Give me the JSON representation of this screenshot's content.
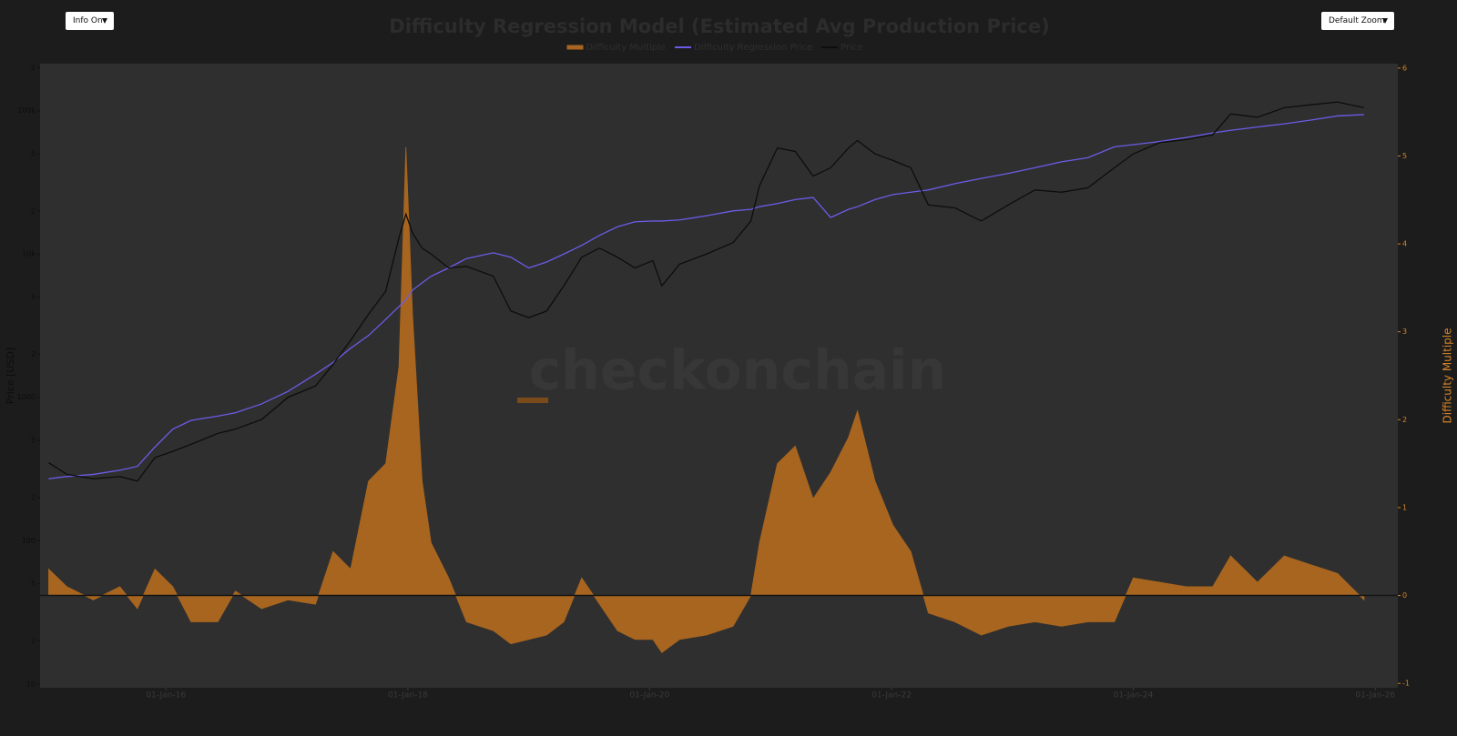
{
  "controls": {
    "info": "Info On",
    "zoom": "Default Zoom"
  },
  "chart_data": {
    "type": "line",
    "title": "Difficulty Regression Model (Estimated Avg Production Price)",
    "watermark": "checkonchain",
    "y_label": "Price [USD]",
    "y2_label": "Difficulty Multiple",
    "legend": "top",
    "grid": false,
    "ylog": true,
    "x": [
      "2015-01-12",
      "2015-03-08",
      "2015-05-27",
      "2015-08-15",
      "2015-10-07",
      "2015-11-29",
      "2016-01-22",
      "2016-03-17",
      "2016-06-06",
      "2016-07-29",
      "2016-10-16",
      "2017-01-04",
      "2017-03-28",
      "2017-05-20",
      "2017-07-12",
      "2017-09-04",
      "2017-10-26",
      "2017-12-05",
      "2017-12-26",
      "2018-01-15",
      "2018-02-13",
      "2018-03-12",
      "2018-05-04",
      "2018-06-27",
      "2018-09-16",
      "2018-11-08",
      "2019-01-01",
      "2019-02-24",
      "2019-04-17",
      "2019-06-10",
      "2019-08-03",
      "2019-09-26",
      "2019-11-18",
      "2020-01-11",
      "2020-02-07",
      "2020-04-01",
      "2020-06-21",
      "2020-09-09",
      "2020-11-02",
      "2020-11-28",
      "2021-01-21",
      "2021-03-16",
      "2021-05-09",
      "2021-07-01",
      "2021-08-24",
      "2021-09-20",
      "2021-11-12",
      "2022-01-05",
      "2022-02-28",
      "2022-04-22",
      "2022-07-11",
      "2022-09-29",
      "2022-12-19",
      "2023-03-10",
      "2023-05-29",
      "2023-08-17",
      "2023-11-05",
      "2024-01-01",
      "2024-03-21",
      "2024-06-09",
      "2024-08-28",
      "2024-10-21",
      "2025-01-10",
      "2025-04-01",
      "2025-06-20",
      "2025-09-09",
      "2025-11-28"
    ],
    "series": [
      {
        "name": "Difficulty Multiple",
        "type": "area",
        "axis": "y2",
        "color": "#a8651f",
        "values": [
          0.3,
          0.1,
          -0.05,
          0.1,
          -0.15,
          0.3,
          0.1,
          -0.3,
          -0.3,
          0.05,
          -0.15,
          -0.05,
          -0.1,
          0.5,
          0.3,
          1.3,
          1.5,
          2.6,
          5.1,
          3.2,
          1.3,
          0.6,
          0.2,
          -0.3,
          -0.4,
          -0.55,
          -0.5,
          -0.45,
          -0.3,
          0.2,
          -0.1,
          -0.4,
          -0.5,
          -0.5,
          -0.65,
          -0.5,
          -0.45,
          -0.35,
          0.0,
          0.6,
          1.5,
          1.7,
          1.1,
          1.4,
          1.8,
          2.1,
          1.3,
          0.8,
          0.5,
          -0.2,
          -0.3,
          -0.45,
          -0.35,
          -0.3,
          -0.35,
          -0.3,
          -0.3,
          0.2,
          0.15,
          0.1,
          0.1,
          0.45,
          0.15,
          0.45,
          0.35,
          0.25,
          -0.05
        ]
      },
      {
        "name": "Difficulty Regression Price",
        "color": "#6b5ce7",
        "values": [
          270,
          280,
          290,
          310,
          330,
          450,
          600,
          690,
          740,
          780,
          900,
          1100,
          1450,
          1750,
          2200,
          2700,
          3500,
          4300,
          4800,
          5600,
          6300,
          7000,
          8000,
          9300,
          10200,
          9500,
          8000,
          8800,
          10000,
          11500,
          13500,
          15500,
          16800,
          17000,
          17000,
          17300,
          18500,
          20000,
          20500,
          21400,
          22500,
          24000,
          24800,
          18000,
          20500,
          21400,
          24000,
          26000,
          27000,
          28000,
          31000,
          33700,
          36500,
          40000,
          44000,
          47000,
          56000,
          58000,
          61000,
          65000,
          70000,
          73000,
          77000,
          81000,
          86000,
          92000,
          94000
        ]
      },
      {
        "name": "Price",
        "color": "#0d0d0d",
        "values": [
          350,
          290,
          270,
          280,
          260,
          380,
          420,
          470,
          560,
          600,
          700,
          1000,
          1200,
          1700,
          2500,
          3800,
          5500,
          13000,
          19000,
          14000,
          11000,
          10000,
          8000,
          8200,
          7000,
          4000,
          3600,
          4000,
          6000,
          9500,
          11000,
          9500,
          8000,
          9000,
          6000,
          8500,
          10000,
          12000,
          17000,
          30000,
          55000,
          52000,
          35000,
          40000,
          55000,
          62000,
          50000,
          45000,
          40000,
          22000,
          21000,
          17000,
          22000,
          28000,
          27000,
          29000,
          40000,
          50000,
          60000,
          63000,
          68000,
          95000,
          90000,
          105000,
          110000,
          115000,
          105000
        ]
      }
    ],
    "xlim": [
      "2014-12-17",
      "2026-03-10"
    ],
    "xticks": [
      {
        "value": "2016-01-01",
        "label": "01-Jan-16"
      },
      {
        "value": "2018-01-01",
        "label": "01-Jan-18"
      },
      {
        "value": "2020-01-01",
        "label": "01-Jan-20"
      },
      {
        "value": "2022-01-01",
        "label": "01-Jan-22"
      },
      {
        "value": "2024-01-01",
        "label": "01-Jan-24"
      },
      {
        "value": "2026-01-01",
        "label": "01-Jan-26"
      }
    ],
    "ylim": [
      9.4,
      213000
    ],
    "yticks": [
      10,
      {
        "value": 20,
        "label": "2"
      },
      {
        "value": 50,
        "label": "5"
      },
      100,
      {
        "value": 200,
        "label": "2"
      },
      {
        "value": 500,
        "label": "5"
      },
      1000,
      {
        "value": 2000,
        "label": "2"
      },
      {
        "value": 5000,
        "label": "5"
      },
      {
        "value": 10000,
        "label": "10k"
      },
      {
        "value": 20000,
        "label": "2"
      },
      {
        "value": 50000,
        "label": "5"
      },
      {
        "value": 100000,
        "label": "100k"
      },
      {
        "value": 200000,
        "label": "2"
      }
    ],
    "y2lim": [
      -1.05,
      6.05
    ],
    "y2ticks": [
      -1,
      0,
      1,
      2,
      3,
      4,
      5,
      6
    ]
  }
}
